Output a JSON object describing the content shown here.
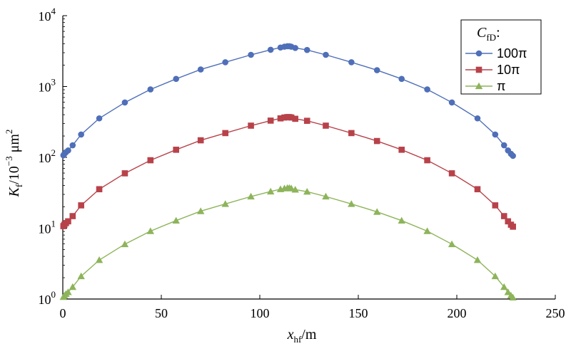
{
  "chart_data": {
    "type": "line",
    "xlabel": "x_hf/m",
    "ylabel": "K_f/10^-3 μm^2",
    "xlim": [
      0,
      250
    ],
    "ylim": [
      1,
      10000
    ],
    "y_scale": "log",
    "grid": false,
    "legend_placement": "top-right",
    "legend_title": "C_fD:",
    "x_ticks": [
      "0",
      "50",
      "100",
      "150",
      "200",
      "250"
    ],
    "y_ticks": [
      {
        "base": "10",
        "exp": "0"
      },
      {
        "base": "10",
        "exp": "1"
      },
      {
        "base": "10",
        "exp": "2"
      },
      {
        "base": "10",
        "exp": "3"
      },
      {
        "base": "10",
        "exp": "4"
      }
    ],
    "series": [
      {
        "name": "100π",
        "color": "#4F6FB8",
        "marker": "circle",
        "x": [
          0.3,
          0.8,
          1.6,
          2.7,
          5.0,
          9.3,
          18.5,
          31.5,
          44.5,
          57.5,
          70.0,
          82.5,
          95.5,
          105.5,
          110.5,
          112.5,
          114.0,
          115.0,
          116.0,
          118.0,
          124.0,
          133.5,
          146.5,
          159.5,
          172.0,
          185.0,
          197.5,
          210.5,
          219.5,
          224.0,
          226.0,
          227.5,
          228.5
        ],
        "y": [
          107,
          112,
          118,
          125,
          148,
          210,
          355,
          595,
          910,
          1280,
          1740,
          2200,
          2800,
          3300,
          3550,
          3650,
          3700,
          3700,
          3650,
          3500,
          3280,
          2800,
          2200,
          1700,
          1280,
          910,
          595,
          355,
          210,
          148,
          125,
          112,
          105
        ]
      },
      {
        "name": "10π",
        "color": "#B8424A",
        "marker": "square",
        "x": [
          0.3,
          0.8,
          1.6,
          2.7,
          5.0,
          9.3,
          18.5,
          31.5,
          44.5,
          57.5,
          70.0,
          82.5,
          95.5,
          105.5,
          110.5,
          112.5,
          114.0,
          115.0,
          116.0,
          118.0,
          124.0,
          133.5,
          146.5,
          159.5,
          172.0,
          185.0,
          197.5,
          210.5,
          219.5,
          224.0,
          226.0,
          227.5,
          228.5
        ],
        "y": [
          10.7,
          11.2,
          11.8,
          12.5,
          14.8,
          21.0,
          35.5,
          59.5,
          91.0,
          128,
          174,
          220,
          280,
          330,
          355,
          365,
          370,
          370,
          365,
          350,
          328,
          280,
          220,
          170,
          128,
          91,
          59.5,
          35.5,
          21.0,
          14.8,
          12.5,
          11.2,
          10.5
        ]
      },
      {
        "name": "π",
        "color": "#8DB45A",
        "marker": "triangle",
        "x": [
          0.3,
          0.8,
          1.6,
          2.7,
          5.0,
          9.3,
          18.5,
          31.5,
          44.5,
          57.5,
          70.0,
          82.5,
          95.5,
          105.5,
          110.5,
          112.5,
          114.0,
          115.0,
          116.0,
          118.0,
          124.0,
          133.5,
          146.5,
          159.5,
          172.0,
          185.0,
          197.5,
          210.5,
          219.5,
          224.0,
          226.0,
          227.5,
          228.5
        ],
        "y": [
          1.07,
          1.12,
          1.18,
          1.25,
          1.48,
          2.1,
          3.55,
          5.95,
          9.1,
          12.8,
          17.4,
          22.0,
          28.0,
          33.0,
          35.5,
          36.5,
          37.0,
          37.0,
          36.5,
          35.0,
          32.8,
          28.0,
          22.0,
          17.0,
          12.8,
          9.1,
          5.95,
          3.55,
          2.1,
          1.48,
          1.25,
          1.12,
          1.05
        ]
      }
    ]
  }
}
